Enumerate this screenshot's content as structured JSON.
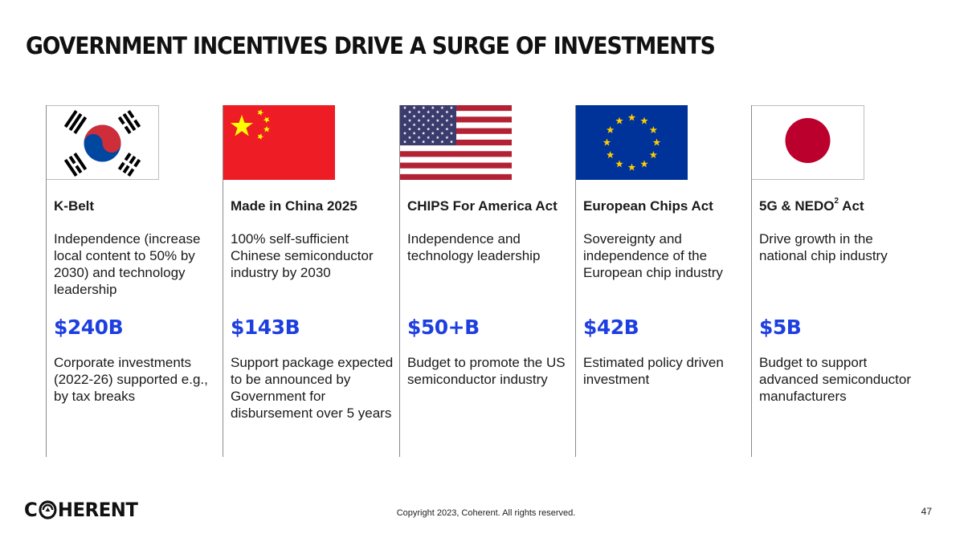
{
  "title": "GOVERNMENT INCENTIVES DRIVE A SURGE OF INVESTMENTS",
  "columns": [
    {
      "flag": "south-korea-flag",
      "title": "K-Belt",
      "description": "Independence (increase local content to 50% by 2030) and technology leadership",
      "amount": "$240B",
      "note": "Corporate investments (2022-26) supported e.g., by tax breaks"
    },
    {
      "flag": "china-flag",
      "title": "Made in China 2025",
      "description": "100% self-sufficient Chinese semiconductor industry by 2030",
      "amount": "$143B",
      "note": "Support package expected to be announced by Government for disbursement over 5 years"
    },
    {
      "flag": "usa-flag",
      "title": "CHIPS For America Act",
      "description": "Independence and technology leadership",
      "amount": "$50+B",
      "note": "Budget to promote the US semiconductor industry"
    },
    {
      "flag": "eu-flag",
      "title": "European Chips Act",
      "description": "Sovereignty and independence of the European chip industry",
      "amount": "$42B",
      "note": "Estimated policy driven investment"
    },
    {
      "flag": "japan-flag",
      "title_main": "5G & NEDO",
      "title_sup": "2",
      "title_tail": " Act",
      "description": "Drive growth in the national chip industry",
      "amount": "$5B",
      "note": "Budget to support advanced semiconductor manufacturers"
    }
  ],
  "footer": {
    "logo_c": "C",
    "logo_rest": "HERENT",
    "copyright": "Copyright 2023, Coherent. All rights reserved.",
    "page_number": "47"
  },
  "colors": {
    "amount_blue": "#1e3fe0",
    "korea_red": "#cd2e3a",
    "korea_blue": "#0047a0",
    "china_red": "#ee1c25",
    "china_yellow": "#ffff00",
    "usa_red": "#b22234",
    "usa_blue": "#3c3b6e",
    "eu_blue": "#003399",
    "eu_yellow": "#ffcc00",
    "japan_red": "#bc002d"
  }
}
